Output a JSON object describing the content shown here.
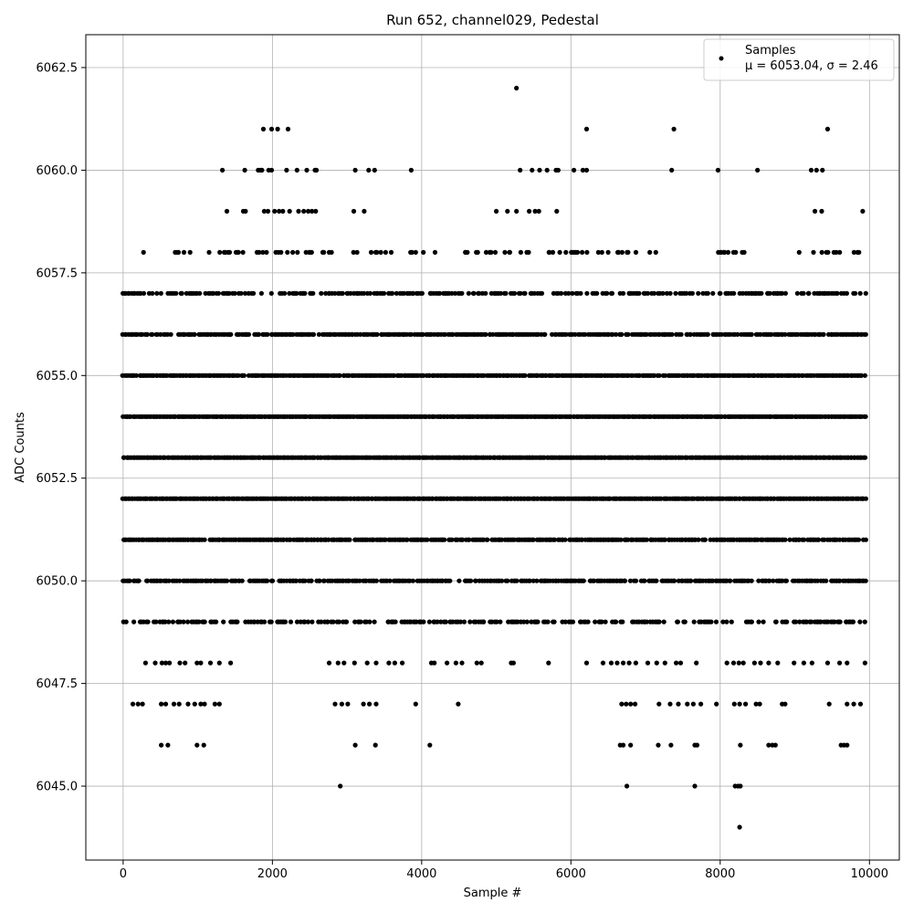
{
  "chart_data": {
    "type": "scatter",
    "title": "Run 652, channel029, Pedestal",
    "xlabel": "Sample #",
    "ylabel": "ADC Counts",
    "xlim": [
      -500,
      10400
    ],
    "ylim": [
      6043.2,
      6063.3
    ],
    "xticks": [
      0,
      2000,
      4000,
      6000,
      8000,
      10000
    ],
    "yticks": [
      6045.0,
      6047.5,
      6050.0,
      6052.5,
      6055.0,
      6057.5,
      6060.0,
      6062.5
    ],
    "xtick_labels": [
      "0",
      "2000",
      "4000",
      "6000",
      "8000",
      "10000"
    ],
    "ytick_labels": [
      "6045.0",
      "6047.5",
      "6050.0",
      "6052.5",
      "6055.0",
      "6057.5",
      "6060.0",
      "6062.5"
    ],
    "grid": true,
    "legend_position": "top-right",
    "marker_color": "#000000",
    "series": [
      {
        "name": "Samples",
        "legend_lines": [
          "Samples",
          "μ = 6053.04, σ = 2.46"
        ],
        "bands": [
          {
            "y": 6049,
            "ranges": [
              [
                0,
                9950
              ]
            ],
            "density": 0.55
          },
          {
            "y": 6050,
            "ranges": [
              [
                0,
                9950
              ]
            ],
            "density": 0.75
          },
          {
            "y": 6051,
            "ranges": [
              [
                0,
                9950
              ]
            ],
            "density": 0.9
          },
          {
            "y": 6052,
            "ranges": [
              [
                0,
                9950
              ]
            ],
            "density": 1.0
          },
          {
            "y": 6053,
            "ranges": [
              [
                0,
                9950
              ]
            ],
            "density": 1.0
          },
          {
            "y": 6054,
            "ranges": [
              [
                0,
                9950
              ]
            ],
            "density": 1.0
          },
          {
            "y": 6055,
            "ranges": [
              [
                0,
                9950
              ]
            ],
            "density": 0.95
          },
          {
            "y": 6056,
            "ranges": [
              [
                0,
                9950
              ]
            ],
            "density": 0.8
          },
          {
            "y": 6057,
            "ranges": [
              [
                0,
                9950
              ]
            ],
            "density": 0.6
          },
          {
            "y": 6058,
            "ranges": [
              [
                280,
                320
              ],
              [
                700,
                900
              ],
              [
                1150,
                2800
              ],
              [
                3000,
                4200
              ],
              [
                4400,
                5200
              ],
              [
                5300,
                6700
              ],
              [
                6750,
                7600
              ],
              [
                7950,
                8350
              ],
              [
                8850,
                9950
              ]
            ],
            "density": 0.35
          }
        ],
        "points": [
          {
            "x": 300,
            "y": 6048
          },
          {
            "x": 430,
            "y": 6048
          },
          {
            "x": 520,
            "y": 6048
          },
          {
            "x": 570,
            "y": 6048
          },
          {
            "x": 620,
            "y": 6048
          },
          {
            "x": 760,
            "y": 6048
          },
          {
            "x": 830,
            "y": 6048
          },
          {
            "x": 990,
            "y": 6048
          },
          {
            "x": 1040,
            "y": 6048
          },
          {
            "x": 1170,
            "y": 6048
          },
          {
            "x": 1290,
            "y": 6048
          },
          {
            "x": 1440,
            "y": 6048
          },
          {
            "x": 2760,
            "y": 6048
          },
          {
            "x": 2880,
            "y": 6048
          },
          {
            "x": 2960,
            "y": 6048
          },
          {
            "x": 3100,
            "y": 6048
          },
          {
            "x": 3270,
            "y": 6048
          },
          {
            "x": 3390,
            "y": 6048
          },
          {
            "x": 3560,
            "y": 6048
          },
          {
            "x": 3640,
            "y": 6048
          },
          {
            "x": 3740,
            "y": 6048
          },
          {
            "x": 4130,
            "y": 6048
          },
          {
            "x": 4170,
            "y": 6048
          },
          {
            "x": 4340,
            "y": 6048
          },
          {
            "x": 4460,
            "y": 6048
          },
          {
            "x": 4540,
            "y": 6048
          },
          {
            "x": 4740,
            "y": 6048
          },
          {
            "x": 4800,
            "y": 6048
          },
          {
            "x": 5200,
            "y": 6048
          },
          {
            "x": 5230,
            "y": 6048
          },
          {
            "x": 5700,
            "y": 6048
          },
          {
            "x": 6210,
            "y": 6048
          },
          {
            "x": 6430,
            "y": 6048
          },
          {
            "x": 6540,
            "y": 6048
          },
          {
            "x": 6620,
            "y": 6048
          },
          {
            "x": 6700,
            "y": 6048
          },
          {
            "x": 6780,
            "y": 6048
          },
          {
            "x": 6870,
            "y": 6048
          },
          {
            "x": 7030,
            "y": 6048
          },
          {
            "x": 7150,
            "y": 6048
          },
          {
            "x": 7260,
            "y": 6048
          },
          {
            "x": 7410,
            "y": 6048
          },
          {
            "x": 7470,
            "y": 6048
          },
          {
            "x": 7680,
            "y": 6048
          },
          {
            "x": 8090,
            "y": 6048
          },
          {
            "x": 8180,
            "y": 6048
          },
          {
            "x": 8250,
            "y": 6048
          },
          {
            "x": 8310,
            "y": 6048
          },
          {
            "x": 8460,
            "y": 6048
          },
          {
            "x": 8540,
            "y": 6048
          },
          {
            "x": 8650,
            "y": 6048
          },
          {
            "x": 8770,
            "y": 6048
          },
          {
            "x": 8990,
            "y": 6048
          },
          {
            "x": 9120,
            "y": 6048
          },
          {
            "x": 9230,
            "y": 6048
          },
          {
            "x": 9440,
            "y": 6048
          },
          {
            "x": 9600,
            "y": 6048
          },
          {
            "x": 9700,
            "y": 6048
          },
          {
            "x": 9940,
            "y": 6048
          },
          {
            "x": 130,
            "y": 6047
          },
          {
            "x": 200,
            "y": 6047
          },
          {
            "x": 260,
            "y": 6047
          },
          {
            "x": 510,
            "y": 6047
          },
          {
            "x": 570,
            "y": 6047
          },
          {
            "x": 680,
            "y": 6047
          },
          {
            "x": 750,
            "y": 6047
          },
          {
            "x": 870,
            "y": 6047
          },
          {
            "x": 960,
            "y": 6047
          },
          {
            "x": 1040,
            "y": 6047
          },
          {
            "x": 1090,
            "y": 6047
          },
          {
            "x": 1230,
            "y": 6047
          },
          {
            "x": 1290,
            "y": 6047
          },
          {
            "x": 2840,
            "y": 6047
          },
          {
            "x": 2930,
            "y": 6047
          },
          {
            "x": 3010,
            "y": 6047
          },
          {
            "x": 3220,
            "y": 6047
          },
          {
            "x": 3300,
            "y": 6047
          },
          {
            "x": 3390,
            "y": 6047
          },
          {
            "x": 3920,
            "y": 6047
          },
          {
            "x": 4490,
            "y": 6047
          },
          {
            "x": 6680,
            "y": 6047
          },
          {
            "x": 6740,
            "y": 6047
          },
          {
            "x": 6800,
            "y": 6047
          },
          {
            "x": 6860,
            "y": 6047
          },
          {
            "x": 7180,
            "y": 6047
          },
          {
            "x": 7330,
            "y": 6047
          },
          {
            "x": 7440,
            "y": 6047
          },
          {
            "x": 7560,
            "y": 6047
          },
          {
            "x": 7640,
            "y": 6047
          },
          {
            "x": 7740,
            "y": 6047
          },
          {
            "x": 7950,
            "y": 6047
          },
          {
            "x": 8190,
            "y": 6047
          },
          {
            "x": 8260,
            "y": 6047
          },
          {
            "x": 8340,
            "y": 6047
          },
          {
            "x": 8480,
            "y": 6047
          },
          {
            "x": 8530,
            "y": 6047
          },
          {
            "x": 8830,
            "y": 6047
          },
          {
            "x": 8870,
            "y": 6047
          },
          {
            "x": 9460,
            "y": 6047
          },
          {
            "x": 9700,
            "y": 6047
          },
          {
            "x": 9790,
            "y": 6047
          },
          {
            "x": 9880,
            "y": 6047
          },
          {
            "x": 510,
            "y": 6046
          },
          {
            "x": 600,
            "y": 6046
          },
          {
            "x": 990,
            "y": 6046
          },
          {
            "x": 1080,
            "y": 6046
          },
          {
            "x": 3110,
            "y": 6046
          },
          {
            "x": 3380,
            "y": 6046
          },
          {
            "x": 4110,
            "y": 6046
          },
          {
            "x": 6660,
            "y": 6046
          },
          {
            "x": 6700,
            "y": 6046
          },
          {
            "x": 6800,
            "y": 6046
          },
          {
            "x": 7170,
            "y": 6046
          },
          {
            "x": 7340,
            "y": 6046
          },
          {
            "x": 7660,
            "y": 6046
          },
          {
            "x": 7690,
            "y": 6046
          },
          {
            "x": 8270,
            "y": 6046
          },
          {
            "x": 8650,
            "y": 6046
          },
          {
            "x": 8700,
            "y": 6046
          },
          {
            "x": 8740,
            "y": 6046
          },
          {
            "x": 9620,
            "y": 6046
          },
          {
            "x": 9660,
            "y": 6046
          },
          {
            "x": 9700,
            "y": 6046
          },
          {
            "x": 2910,
            "y": 6045
          },
          {
            "x": 6750,
            "y": 6045
          },
          {
            "x": 7660,
            "y": 6045
          },
          {
            "x": 8200,
            "y": 6045
          },
          {
            "x": 8240,
            "y": 6045
          },
          {
            "x": 8270,
            "y": 6045
          },
          {
            "x": 8260,
            "y": 6044
          },
          {
            "x": 1330,
            "y": 6060
          },
          {
            "x": 1630,
            "y": 6060
          },
          {
            "x": 1810,
            "y": 6060
          },
          {
            "x": 1840,
            "y": 6060
          },
          {
            "x": 1860,
            "y": 6060
          },
          {
            "x": 1950,
            "y": 6060
          },
          {
            "x": 1990,
            "y": 6060
          },
          {
            "x": 2190,
            "y": 6060
          },
          {
            "x": 2330,
            "y": 6060
          },
          {
            "x": 2460,
            "y": 6060
          },
          {
            "x": 2570,
            "y": 6060
          },
          {
            "x": 2590,
            "y": 6060
          },
          {
            "x": 3110,
            "y": 6060
          },
          {
            "x": 3290,
            "y": 6060
          },
          {
            "x": 3370,
            "y": 6060
          },
          {
            "x": 3860,
            "y": 6060
          },
          {
            "x": 5320,
            "y": 6060
          },
          {
            "x": 5480,
            "y": 6060
          },
          {
            "x": 5580,
            "y": 6060
          },
          {
            "x": 5680,
            "y": 6060
          },
          {
            "x": 5800,
            "y": 6060
          },
          {
            "x": 5830,
            "y": 6060
          },
          {
            "x": 6040,
            "y": 6060
          },
          {
            "x": 6160,
            "y": 6060
          },
          {
            "x": 6210,
            "y": 6060
          },
          {
            "x": 7350,
            "y": 6060
          },
          {
            "x": 7970,
            "y": 6060
          },
          {
            "x": 8500,
            "y": 6060
          },
          {
            "x": 9220,
            "y": 6060
          },
          {
            "x": 9290,
            "y": 6060
          },
          {
            "x": 9370,
            "y": 6060
          },
          {
            "x": 1390,
            "y": 6059
          },
          {
            "x": 1610,
            "y": 6059
          },
          {
            "x": 1640,
            "y": 6059
          },
          {
            "x": 1890,
            "y": 6059
          },
          {
            "x": 1940,
            "y": 6059
          },
          {
            "x": 2030,
            "y": 6059
          },
          {
            "x": 2090,
            "y": 6059
          },
          {
            "x": 2140,
            "y": 6059
          },
          {
            "x": 2230,
            "y": 6059
          },
          {
            "x": 2350,
            "y": 6059
          },
          {
            "x": 2420,
            "y": 6059
          },
          {
            "x": 2480,
            "y": 6059
          },
          {
            "x": 2530,
            "y": 6059
          },
          {
            "x": 2580,
            "y": 6059
          },
          {
            "x": 3090,
            "y": 6059
          },
          {
            "x": 3230,
            "y": 6059
          },
          {
            "x": 5000,
            "y": 6059
          },
          {
            "x": 5150,
            "y": 6059
          },
          {
            "x": 5270,
            "y": 6059
          },
          {
            "x": 5440,
            "y": 6059
          },
          {
            "x": 5520,
            "y": 6059
          },
          {
            "x": 5570,
            "y": 6059
          },
          {
            "x": 5810,
            "y": 6059
          },
          {
            "x": 9270,
            "y": 6059
          },
          {
            "x": 9360,
            "y": 6059
          },
          {
            "x": 9910,
            "y": 6059
          },
          {
            "x": 1880,
            "y": 6061
          },
          {
            "x": 1990,
            "y": 6061
          },
          {
            "x": 2070,
            "y": 6061
          },
          {
            "x": 2210,
            "y": 6061
          },
          {
            "x": 6210,
            "y": 6061
          },
          {
            "x": 7380,
            "y": 6061
          },
          {
            "x": 9440,
            "y": 6061
          },
          {
            "x": 5270,
            "y": 6062
          }
        ]
      }
    ]
  }
}
